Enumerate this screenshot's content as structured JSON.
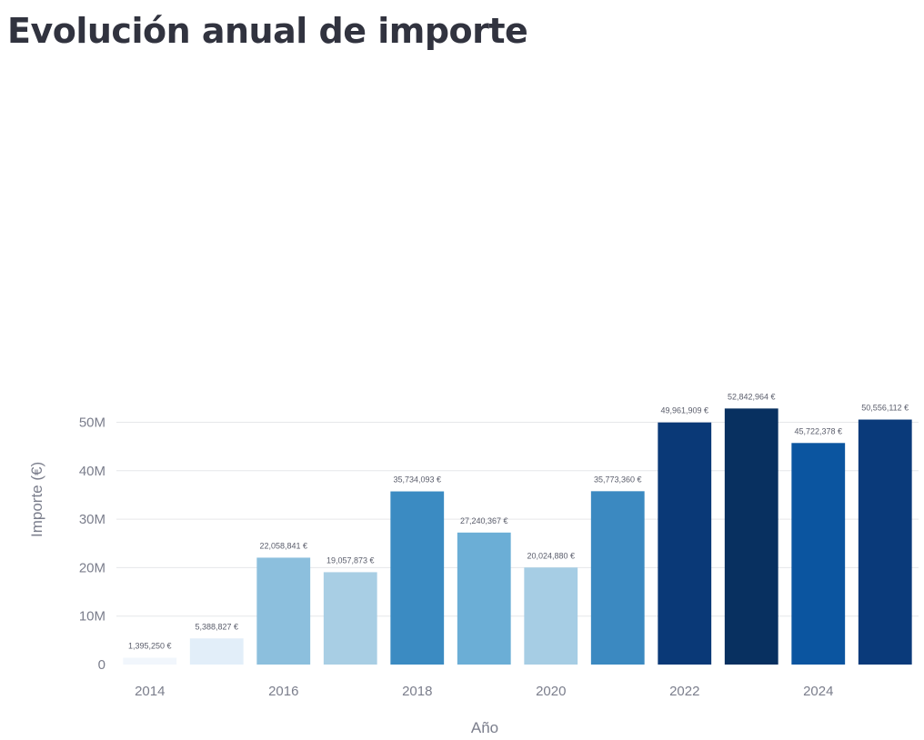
{
  "page": {
    "title": "Evolución anual de importe"
  },
  "chart_data": {
    "type": "bar",
    "title": "Evolución anual de importe",
    "xlabel": "Año",
    "ylabel": "Importe (€)",
    "categories": [
      "2014",
      "2015",
      "2016",
      "2017",
      "2018",
      "2019",
      "2020",
      "2021",
      "2022",
      "2023",
      "2024",
      "2025"
    ],
    "values": [
      1395250,
      5388827,
      22058841,
      19057873,
      35734093,
      27240367,
      20024880,
      35773360,
      49961909,
      52842964,
      45722378,
      50556112
    ],
    "data_labels": [
      "1,395,250 €",
      "5,388,827 €",
      "22,058,841 €",
      "19,057,873 €",
      "35,734,093 €",
      "27,240,367 €",
      "20,024,880 €",
      "35,773,360 €",
      "49,961,909 €",
      "52,842,964 €",
      "45,722,378 €",
      "50,556,112 €"
    ],
    "colors": [
      "#f1f6fc",
      "#e2eef9",
      "#8cbfdd",
      "#a8cee4",
      "#3b8bc2",
      "#6baed6",
      "#a6cde4",
      "#3b89c1",
      "#0a3977",
      "#083060",
      "#0b55a0",
      "#0a3a7a"
    ],
    "x_tick_labels": [
      "2014",
      "2016",
      "2018",
      "2020",
      "2022",
      "2024"
    ],
    "y_ticks": [
      0,
      10000000,
      20000000,
      30000000,
      40000000,
      50000000
    ],
    "y_tick_labels": [
      "0",
      "10M",
      "20M",
      "30M",
      "40M",
      "50M"
    ],
    "ylim": [
      0,
      55000000
    ],
    "grid": true,
    "legend": "none"
  }
}
